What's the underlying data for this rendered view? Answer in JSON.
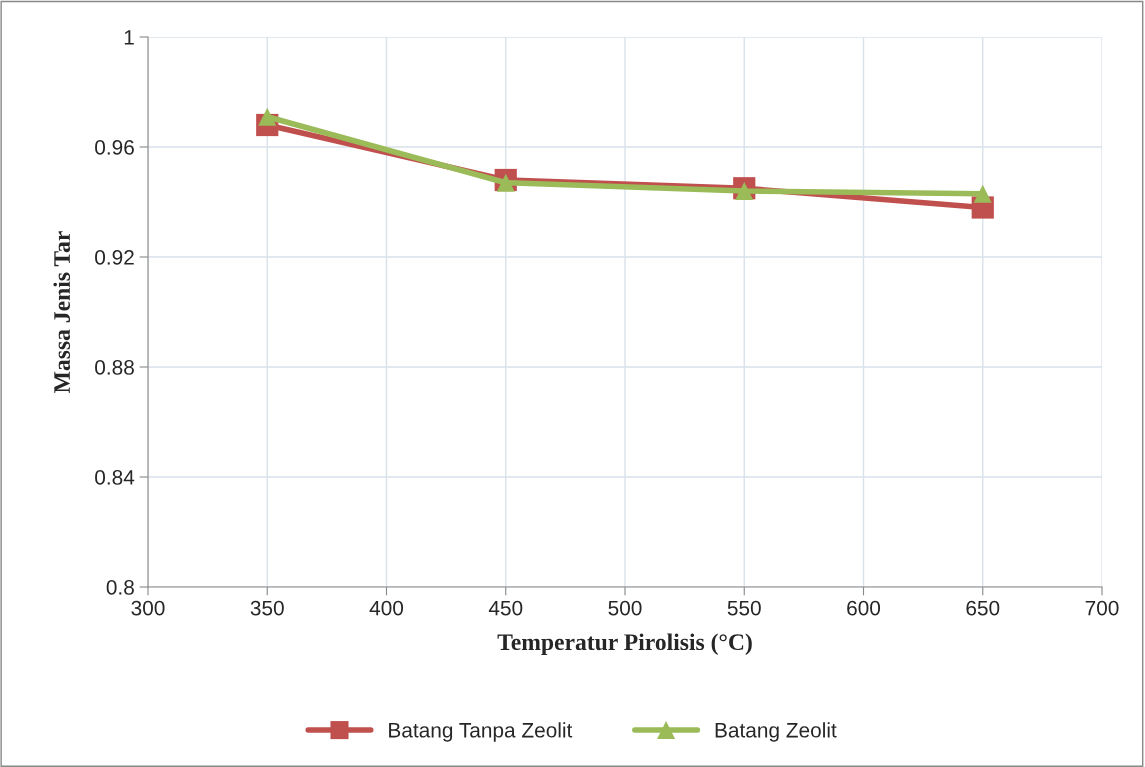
{
  "chart_data": {
    "type": "line",
    "xlabel": "Temperatur Pirolisis (°C)",
    "ylabel": "Massa Jenis Tar",
    "x": [
      350,
      450,
      550,
      650
    ],
    "series": [
      {
        "name": "Batang Tanpa Zeolit",
        "color": "#c0504d",
        "marker": "square",
        "values": [
          0.968,
          0.948,
          0.945,
          0.938
        ]
      },
      {
        "name": "Batang Zeolit",
        "color": "#9bbb59",
        "marker": "triangle",
        "values": [
          0.971,
          0.947,
          0.944,
          0.943
        ]
      }
    ],
    "xlim": [
      300,
      700
    ],
    "xticks": [
      300,
      350,
      400,
      450,
      500,
      550,
      600,
      650,
      700
    ],
    "ylim": [
      0.8,
      1
    ],
    "yticks": [
      0.8,
      0.84,
      0.88,
      0.92,
      0.96,
      1
    ],
    "grid": true,
    "legend": "bottom",
    "line_style": "solid"
  }
}
